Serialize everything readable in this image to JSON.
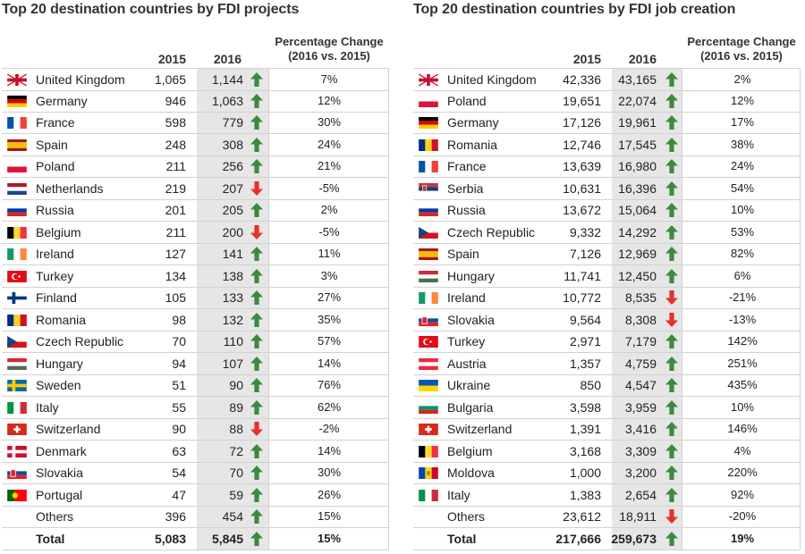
{
  "colors": {
    "up": "#3b8a3e",
    "down": "#e8302a",
    "shade": "#e6e6e6",
    "rule": "#d2d2d2"
  },
  "chart_data": [
    {
      "type": "table",
      "title": "Top 20 destination countries by FDI projects",
      "columns": [
        "2015",
        "2016",
        "Percentage Change (2016 vs. 2015)"
      ],
      "pct_header_line1": "Percentage Change",
      "pct_header_line2": "(2016 vs. 2015)",
      "rows": [
        {
          "name": "United Kingdom",
          "flag": "gb-flag",
          "v2015": "1,065",
          "v2016": "1,144",
          "dir": "up",
          "pct": "7%"
        },
        {
          "name": "Germany",
          "flag": "de-flag",
          "v2015": "946",
          "v2016": "1,063",
          "dir": "up",
          "pct": "12%"
        },
        {
          "name": "France",
          "flag": "fr-flag",
          "v2015": "598",
          "v2016": "779",
          "dir": "up",
          "pct": "30%"
        },
        {
          "name": "Spain",
          "flag": "es-flag",
          "v2015": "248",
          "v2016": "308",
          "dir": "up",
          "pct": "24%"
        },
        {
          "name": "Poland",
          "flag": "pl-flag",
          "v2015": "211",
          "v2016": "256",
          "dir": "up",
          "pct": "21%"
        },
        {
          "name": "Netherlands",
          "flag": "nl-flag",
          "v2015": "219",
          "v2016": "207",
          "dir": "down",
          "pct": "-5%"
        },
        {
          "name": "Russia",
          "flag": "ru-flag",
          "v2015": "201",
          "v2016": "205",
          "dir": "up",
          "pct": "2%"
        },
        {
          "name": "Belgium",
          "flag": "be-flag",
          "v2015": "211",
          "v2016": "200",
          "dir": "down",
          "pct": "-5%"
        },
        {
          "name": "Ireland",
          "flag": "ie-flag",
          "v2015": "127",
          "v2016": "141",
          "dir": "up",
          "pct": "11%"
        },
        {
          "name": "Turkey",
          "flag": "tr-flag",
          "v2015": "134",
          "v2016": "138",
          "dir": "up",
          "pct": "3%"
        },
        {
          "name": "Finland",
          "flag": "fi-flag",
          "v2015": "105",
          "v2016": "133",
          "dir": "up",
          "pct": "27%"
        },
        {
          "name": "Romania",
          "flag": "ro-flag",
          "v2015": "98",
          "v2016": "132",
          "dir": "up",
          "pct": "35%"
        },
        {
          "name": "Czech Republic",
          "flag": "cz-flag",
          "v2015": "70",
          "v2016": "110",
          "dir": "up",
          "pct": "57%"
        },
        {
          "name": "Hungary",
          "flag": "hu-flag",
          "v2015": "94",
          "v2016": "107",
          "dir": "up",
          "pct": "14%"
        },
        {
          "name": "Sweden",
          "flag": "se-flag",
          "v2015": "51",
          "v2016": "90",
          "dir": "up",
          "pct": "76%"
        },
        {
          "name": "Italy",
          "flag": "it-flag",
          "v2015": "55",
          "v2016": "89",
          "dir": "up",
          "pct": "62%"
        },
        {
          "name": "Switzerland",
          "flag": "ch-flag",
          "v2015": "90",
          "v2016": "88",
          "dir": "down",
          "pct": "-2%"
        },
        {
          "name": "Denmark",
          "flag": "dk-flag",
          "v2015": "63",
          "v2016": "72",
          "dir": "up",
          "pct": "14%"
        },
        {
          "name": "Slovakia",
          "flag": "sk-flag",
          "v2015": "54",
          "v2016": "70",
          "dir": "up",
          "pct": "30%"
        },
        {
          "name": "Portugal",
          "flag": "pt-flag",
          "v2015": "47",
          "v2016": "59",
          "dir": "up",
          "pct": "26%"
        },
        {
          "name": "Others",
          "flag": "",
          "v2015": "396",
          "v2016": "454",
          "dir": "up",
          "pct": "15%"
        },
        {
          "name": "Total",
          "flag": "",
          "v2015": "5,083",
          "v2016": "5,845",
          "dir": "up",
          "pct": "15%",
          "bold": true
        }
      ]
    },
    {
      "type": "table",
      "title": "Top 20 destination countries by FDI job creation",
      "columns": [
        "2015",
        "2016",
        "Percentage Change (2016 vs. 2015)"
      ],
      "pct_header_line1": "Percentage Change",
      "pct_header_line2": "(2016 vs. 2015)",
      "rows": [
        {
          "name": "United Kingdom",
          "flag": "gb-flag",
          "v2015": "42,336",
          "v2016": "43,165",
          "dir": "up",
          "pct": "2%"
        },
        {
          "name": "Poland",
          "flag": "pl-flag",
          "v2015": "19,651",
          "v2016": "22,074",
          "dir": "up",
          "pct": "12%"
        },
        {
          "name": "Germany",
          "flag": "de-flag",
          "v2015": "17,126",
          "v2016": "19,961",
          "dir": "up",
          "pct": "17%"
        },
        {
          "name": "Romania",
          "flag": "ro-flag",
          "v2015": "12,746",
          "v2016": "17,545",
          "dir": "up",
          "pct": "38%"
        },
        {
          "name": "France",
          "flag": "fr-flag",
          "v2015": "13,639",
          "v2016": "16,980",
          "dir": "up",
          "pct": "24%"
        },
        {
          "name": "Serbia",
          "flag": "rs-flag",
          "v2015": "10,631",
          "v2016": "16,396",
          "dir": "up",
          "pct": "54%"
        },
        {
          "name": "Russia",
          "flag": "ru-flag",
          "v2015": "13,672",
          "v2016": "15,064",
          "dir": "up",
          "pct": "10%"
        },
        {
          "name": "Czech Republic",
          "flag": "cz-flag",
          "v2015": "9,332",
          "v2016": "14,292",
          "dir": "up",
          "pct": "53%"
        },
        {
          "name": "Spain",
          "flag": "es-flag",
          "v2015": "7,126",
          "v2016": "12,969",
          "dir": "up",
          "pct": "82%"
        },
        {
          "name": "Hungary",
          "flag": "hu-flag",
          "v2015": "11,741",
          "v2016": "12,450",
          "dir": "up",
          "pct": "6%"
        },
        {
          "name": "Ireland",
          "flag": "ie-flag",
          "v2015": "10,772",
          "v2016": "8,535",
          "dir": "down",
          "pct": "-21%"
        },
        {
          "name": "Slovakia",
          "flag": "sk-flag",
          "v2015": "9,564",
          "v2016": "8,308",
          "dir": "down",
          "pct": "-13%"
        },
        {
          "name": "Turkey",
          "flag": "tr-flag",
          "v2015": "2,971",
          "v2016": "7,179",
          "dir": "up",
          "pct": "142%"
        },
        {
          "name": "Austria",
          "flag": "at-flag",
          "v2015": "1,357",
          "v2016": "4,759",
          "dir": "up",
          "pct": "251%"
        },
        {
          "name": "Ukraine",
          "flag": "ua-flag",
          "v2015": "850",
          "v2016": "4,547",
          "dir": "up",
          "pct": "435%"
        },
        {
          "name": "Bulgaria",
          "flag": "bg-flag",
          "v2015": "3,598",
          "v2016": "3,959",
          "dir": "up",
          "pct": "10%"
        },
        {
          "name": "Switzerland",
          "flag": "ch-flag",
          "v2015": "1,391",
          "v2016": "3,416",
          "dir": "up",
          "pct": "146%"
        },
        {
          "name": "Belgium",
          "flag": "be-flag",
          "v2015": "3,168",
          "v2016": "3,309",
          "dir": "up",
          "pct": "4%"
        },
        {
          "name": "Moldova",
          "flag": "md-flag",
          "v2015": "1,000",
          "v2016": "3,200",
          "dir": "up",
          "pct": "220%"
        },
        {
          "name": "Italy",
          "flag": "it-flag",
          "v2015": "1,383",
          "v2016": "2,654",
          "dir": "up",
          "pct": "92%"
        },
        {
          "name": "Others",
          "flag": "",
          "v2015": "23,612",
          "v2016": "18,911",
          "dir": "down",
          "pct": "-20%"
        },
        {
          "name": "Total",
          "flag": "",
          "v2015": "217,666",
          "v2016": "259,673",
          "dir": "up",
          "pct": "19%",
          "bold": true
        }
      ]
    }
  ]
}
